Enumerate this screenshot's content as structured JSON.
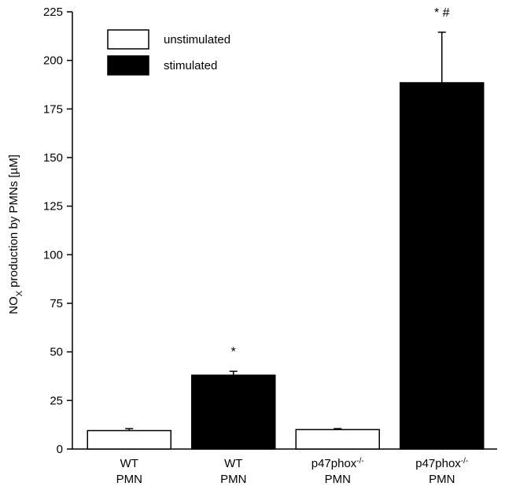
{
  "chart_data": {
    "type": "bar",
    "categories": [
      {
        "line1": "WT",
        "sup1": "",
        "line2": "PMN"
      },
      {
        "line1": "WT",
        "sup1": "",
        "line2": "PMN"
      },
      {
        "line1": "p47phox",
        "sup1": "-/-",
        "line2": "PMN"
      },
      {
        "line1": "p47phox",
        "sup1": "-/-",
        "line2": "PMN"
      }
    ],
    "bars": [
      {
        "group": "unstimulated",
        "value": 9.5,
        "error": 1.0,
        "annotation": ""
      },
      {
        "group": "stimulated",
        "value": 38,
        "error": 2.0,
        "annotation": "*"
      },
      {
        "group": "unstimulated",
        "value": 10,
        "error": 0.5,
        "annotation": ""
      },
      {
        "group": "stimulated",
        "value": 188.5,
        "error": 26,
        "annotation": "* #"
      }
    ],
    "legend": [
      {
        "label": "unstimulated",
        "fill": "#ffffff"
      },
      {
        "label": "stimulated",
        "fill": "#000000"
      }
    ],
    "legend_position": "top-left",
    "ylabel": {
      "main": "NO",
      "sub": "X",
      "rest": " production by PMNs  [µM]"
    },
    "xlabel": "",
    "title": "",
    "ylim": [
      0,
      225
    ],
    "yticks": [
      0,
      25,
      50,
      75,
      100,
      125,
      150,
      175,
      200,
      225
    ],
    "grid": false
  }
}
